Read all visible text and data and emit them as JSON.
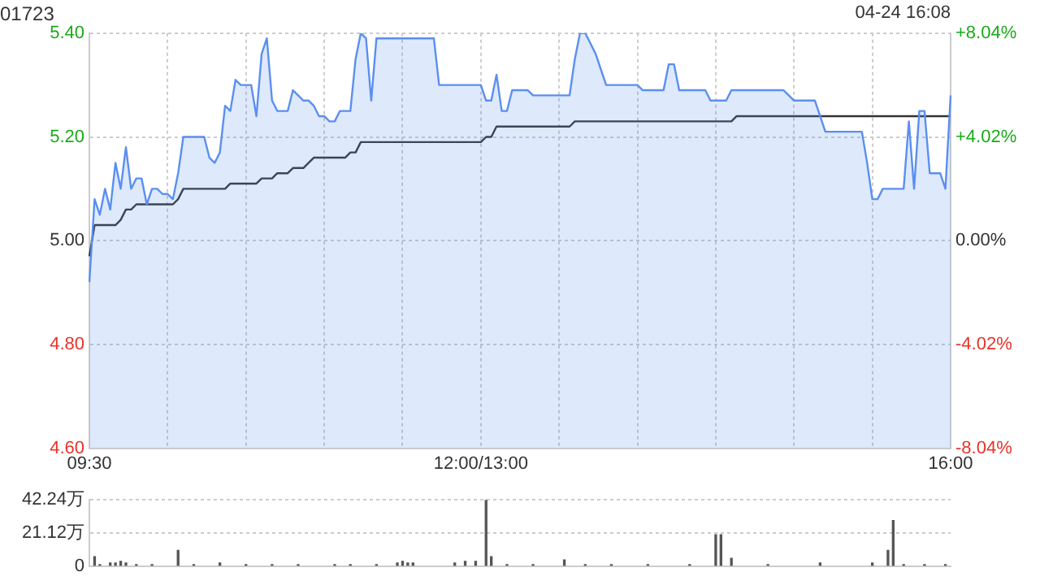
{
  "chart_data": [
    {
      "type": "line",
      "title": "01723",
      "annotations": [
        "04-24 16:08"
      ],
      "categories": [
        "09:30",
        null,
        null,
        null,
        null,
        null,
        null,
        null,
        null,
        null,
        null,
        null,
        null,
        null,
        null,
        null,
        null,
        null,
        null,
        null,
        null,
        null,
        null,
        null,
        null,
        null,
        null,
        null,
        null,
        null,
        null,
        null,
        null,
        null,
        null,
        null,
        null,
        null,
        null,
        null,
        null,
        null,
        null,
        null,
        null,
        null,
        null,
        null,
        null,
        null,
        null,
        null,
        null,
        null,
        null,
        null,
        null,
        null,
        null,
        null,
        null,
        null,
        null,
        null,
        null,
        null,
        null,
        null,
        null,
        null,
        null,
        null,
        null,
        null,
        null,
        "12:00/13:00",
        null,
        null,
        null,
        null,
        null,
        null,
        null,
        null,
        null,
        null,
        null,
        null,
        null,
        null,
        null,
        null,
        null,
        null,
        null,
        null,
        null,
        null,
        null,
        null,
        null,
        null,
        null,
        null,
        null,
        null,
        null,
        null,
        null,
        null,
        null,
        null,
        null,
        null,
        null,
        null,
        null,
        null,
        null,
        null,
        null,
        null,
        null,
        null,
        null,
        null,
        null,
        null,
        null,
        null,
        null,
        null,
        null,
        null,
        null,
        null,
        null,
        null,
        null,
        null,
        null,
        null,
        null,
        null,
        null,
        null,
        null,
        null,
        null,
        null,
        null,
        null,
        null,
        null,
        null,
        null,
        null,
        null,
        null,
        null,
        null,
        null,
        null,
        null,
        null,
        "16:00"
      ],
      "ylim": [
        4.6,
        5.4
      ],
      "yticks": [
        {
          "value": 4.6,
          "label": "4.60"
        },
        {
          "value": 4.8,
          "label": "4.80"
        },
        {
          "value": 5,
          "label": "5.00"
        },
        {
          "value": 5.2,
          "label": "5.20"
        },
        {
          "value": 5.4,
          "label": "5.40"
        }
      ],
      "y2lim": [
        -8.04,
        8.04
      ],
      "y2ticks": [
        {
          "value": -8.04,
          "label": "-8.04%"
        },
        {
          "value": -4.02,
          "label": "-4.02%"
        },
        {
          "value": 0,
          "label": "0.00%"
        },
        {
          "value": 4.02,
          "label": "+4.02%"
        },
        {
          "value": 8.04,
          "label": "+8.04%"
        }
      ],
      "grid": true,
      "marker": "none",
      "series": [
        {
          "type": "area",
          "color": "#5b8ff0",
          "values": [
            4.92,
            5.08,
            5.05,
            5.1,
            5.06,
            5.15,
            5.1,
            5.18,
            5.1,
            5.12,
            5.12,
            5.07,
            5.1,
            5.1,
            5.09,
            5.09,
            5.08,
            5.13,
            5.2,
            5.2,
            5.2,
            5.2,
            5.2,
            5.16,
            5.15,
            5.17,
            5.26,
            5.25,
            5.31,
            5.3,
            5.3,
            5.3,
            5.24,
            5.36,
            5.39,
            5.27,
            5.25,
            5.25,
            5.25,
            5.29,
            5.28,
            5.27,
            5.27,
            5.26,
            5.24,
            5.24,
            5.23,
            5.23,
            5.25,
            5.25,
            5.25,
            5.35,
            5.4,
            5.39,
            5.27,
            5.39,
            5.39,
            5.39,
            5.39,
            5.39,
            5.39,
            5.39,
            5.39,
            5.39,
            5.39,
            5.39,
            5.39,
            5.3,
            5.3,
            5.3,
            5.3,
            5.3,
            5.3,
            5.3,
            5.3,
            5.3,
            5.27,
            5.27,
            5.32,
            5.25,
            5.25,
            5.29,
            5.29,
            5.29,
            5.29,
            5.28,
            5.28,
            5.28,
            5.28,
            5.28,
            5.28,
            5.28,
            5.28,
            5.35,
            5.4,
            5.4,
            5.38,
            5.36,
            5.33,
            5.3,
            5.3,
            5.3,
            5.3,
            5.3,
            5.3,
            5.3,
            5.29,
            5.29,
            5.29,
            5.29,
            5.29,
            5.34,
            5.34,
            5.29,
            5.29,
            5.29,
            5.29,
            5.29,
            5.29,
            5.27,
            5.27,
            5.27,
            5.27,
            5.29,
            5.29,
            5.29,
            5.29,
            5.29,
            5.29,
            5.29,
            5.29,
            5.29,
            5.29,
            5.29,
            5.28,
            5.27,
            5.27,
            5.27,
            5.27,
            5.27,
            5.24,
            5.21,
            5.21,
            5.21,
            5.21,
            5.21,
            5.21,
            5.21,
            5.21,
            5.15,
            5.08,
            5.08,
            5.1,
            5.1,
            5.1,
            5.1,
            5.1,
            5.23,
            5.1,
            5.25,
            5.25,
            5.13,
            5.13,
            5.13,
            5.1,
            5.28
          ]
        },
        {
          "type": "line",
          "color": "#333333",
          "values": [
            4.97,
            5.03,
            5.03,
            5.03,
            5.03,
            5.03,
            5.04,
            5.06,
            5.06,
            5.07,
            5.07,
            5.07,
            5.07,
            5.07,
            5.07,
            5.07,
            5.07,
            5.08,
            5.1,
            5.1,
            5.1,
            5.1,
            5.1,
            5.1,
            5.1,
            5.1,
            5.1,
            5.11,
            5.11,
            5.11,
            5.11,
            5.11,
            5.11,
            5.12,
            5.12,
            5.12,
            5.13,
            5.13,
            5.13,
            5.14,
            5.14,
            5.14,
            5.15,
            5.16,
            5.16,
            5.16,
            5.16,
            5.16,
            5.16,
            5.16,
            5.17,
            5.17,
            5.19,
            5.19,
            5.19,
            5.19,
            5.19,
            5.19,
            5.19,
            5.19,
            5.19,
            5.19,
            5.19,
            5.19,
            5.19,
            5.19,
            5.19,
            5.19,
            5.19,
            5.19,
            5.19,
            5.19,
            5.19,
            5.19,
            5.19,
            5.19,
            5.2,
            5.2,
            5.22,
            5.22,
            5.22,
            5.22,
            5.22,
            5.22,
            5.22,
            5.22,
            5.22,
            5.22,
            5.22,
            5.22,
            5.22,
            5.22,
            5.22,
            5.23,
            5.23,
            5.23,
            5.23,
            5.23,
            5.23,
            5.23,
            5.23,
            5.23,
            5.23,
            5.23,
            5.23,
            5.23,
            5.23,
            5.23,
            5.23,
            5.23,
            5.23,
            5.23,
            5.23,
            5.23,
            5.23,
            5.23,
            5.23,
            5.23,
            5.23,
            5.23,
            5.23,
            5.23,
            5.23,
            5.23,
            5.24,
            5.24,
            5.24,
            5.24,
            5.24,
            5.24,
            5.24,
            5.24,
            5.24,
            5.24,
            5.24,
            5.24,
            5.24,
            5.24,
            5.24,
            5.24,
            5.24,
            5.24,
            5.24,
            5.24,
            5.24,
            5.24,
            5.24,
            5.24,
            5.24,
            5.24,
            5.24,
            5.24,
            5.24,
            5.24,
            5.24,
            5.24,
            5.24,
            5.24,
            5.24,
            5.24,
            5.24,
            5.24,
            5.24,
            5.24,
            5.24,
            5.24
          ]
        }
      ]
    },
    {
      "type": "bar",
      "tick_labels": "y",
      "grid": "y",
      "categories": [
        null,
        null,
        null,
        null,
        null,
        null,
        null,
        null,
        null,
        null,
        null,
        null,
        null,
        null,
        null,
        null,
        null,
        null,
        null,
        null,
        null,
        null,
        null,
        null,
        null,
        null,
        null,
        null,
        null,
        null,
        null,
        null,
        null,
        null,
        null,
        null,
        null,
        null,
        null,
        null,
        null,
        null,
        null,
        null,
        null,
        null,
        null,
        null,
        null,
        null,
        null,
        null,
        null,
        null,
        null,
        null,
        null,
        null,
        null,
        null,
        null,
        null,
        null,
        null,
        null,
        null,
        null,
        null,
        null,
        null,
        null,
        null,
        null,
        null,
        null,
        null,
        null,
        null,
        null,
        null,
        null,
        null,
        null,
        null,
        null,
        null,
        null,
        null,
        null,
        null,
        null,
        null,
        null,
        null,
        null,
        null,
        null,
        null,
        null,
        null,
        null,
        null,
        null,
        null,
        null,
        null,
        null,
        null,
        null,
        null,
        null,
        null,
        null,
        null,
        null,
        null,
        null,
        null,
        null,
        null,
        null,
        null,
        null,
        null,
        null,
        null,
        null,
        null,
        null,
        null,
        null,
        null,
        null,
        null,
        null,
        null,
        null,
        null,
        null,
        null,
        null,
        null,
        null,
        null,
        null,
        null,
        null,
        null,
        null,
        null,
        null,
        null,
        null,
        null,
        null,
        null,
        null,
        null,
        null,
        null,
        null,
        null,
        null,
        null,
        null,
        null
      ],
      "ylim": [
        0,
        42.24
      ],
      "yticks": [
        {
          "value": 0,
          "label": "0"
        },
        {
          "value": 21.12,
          "label": "21.12万"
        },
        {
          "value": 42.24,
          "label": "42.24万"
        }
      ],
      "series": [
        {
          "color": "#555555",
          "values": [
            null,
            6,
            1,
            null,
            2,
            2,
            3,
            2,
            null,
            1,
            null,
            null,
            1,
            null,
            null,
            null,
            null,
            10,
            null,
            null,
            1,
            null,
            null,
            null,
            null,
            2,
            null,
            null,
            null,
            null,
            1,
            null,
            null,
            null,
            null,
            1,
            null,
            null,
            null,
            null,
            1,
            null,
            null,
            null,
            null,
            null,
            null,
            1,
            null,
            null,
            1,
            null,
            null,
            null,
            null,
            1,
            null,
            null,
            null,
            2,
            3,
            2,
            2,
            null,
            null,
            null,
            null,
            null,
            null,
            null,
            2,
            null,
            3,
            null,
            3,
            null,
            42,
            6,
            null,
            null,
            1,
            null,
            null,
            null,
            null,
            1,
            null,
            null,
            null,
            null,
            null,
            4,
            null,
            null,
            null,
            1,
            null,
            null,
            null,
            null,
            1,
            null,
            null,
            null,
            null,
            null,
            null,
            1,
            null,
            null,
            null,
            null,
            null,
            null,
            null,
            1,
            null,
            null,
            null,
            null,
            20,
            20,
            null,
            5,
            null,
            null,
            null,
            null,
            null,
            null,
            1,
            null,
            null,
            null,
            null,
            null,
            null,
            null,
            null,
            null,
            2,
            null,
            null,
            null,
            null,
            null,
            null,
            null,
            null,
            null,
            2,
            null,
            null,
            10,
            29,
            null,
            1,
            null,
            null,
            null,
            1,
            null,
            null,
            null,
            1,
            null
          ]
        }
      ]
    }
  ]
}
